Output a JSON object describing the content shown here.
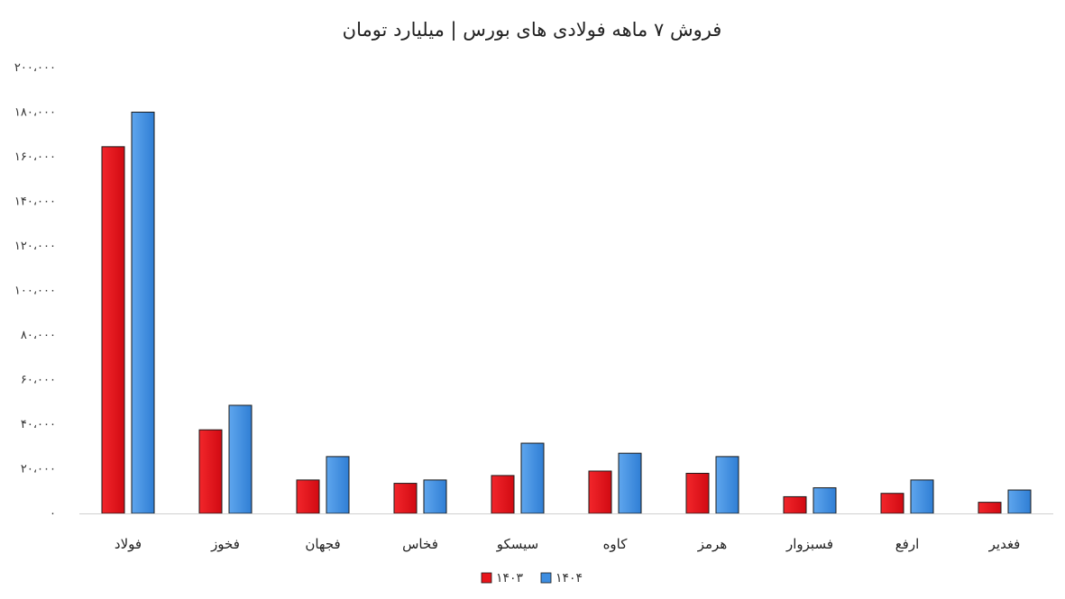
{
  "chart_data": {
    "type": "bar",
    "title": "فروش ۷ ماهه فولادی های بورس | میلیارد تومان",
    "xlabel": "",
    "ylabel": "",
    "ylim": [
      0,
      200000
    ],
    "yticks": [
      0,
      20000,
      40000,
      60000,
      80000,
      100000,
      120000,
      140000,
      160000,
      180000,
      200000
    ],
    "ytick_labels": [
      "۰",
      "۲۰،۰۰۰",
      "۴۰،۰۰۰",
      "۶۰،۰۰۰",
      "۸۰،۰۰۰",
      "۱۰۰،۰۰۰",
      "۱۲۰،۰۰۰",
      "۱۴۰،۰۰۰",
      "۱۶۰،۰۰۰",
      "۱۸۰،۰۰۰",
      "۲۰۰،۰۰۰"
    ],
    "grid": false,
    "legend_position": "bottom",
    "categories": [
      "فولاد",
      "فخوز",
      "فجهان",
      "فخاس",
      "سیسکو",
      "کاوه",
      "هرمز",
      "فسبزوار",
      "ارفع",
      "فغدیر"
    ],
    "series": [
      {
        "name": "۱۴۰۳",
        "color": "#e8151b",
        "values": [
          164500,
          37500,
          15000,
          13500,
          17000,
          19000,
          18000,
          7500,
          9000,
          5000
        ]
      },
      {
        "name": "۱۴۰۴",
        "color": "#3d8de0",
        "values": [
          180000,
          48500,
          25500,
          15000,
          31500,
          27000,
          25500,
          11500,
          15000,
          10500
        ]
      }
    ]
  }
}
